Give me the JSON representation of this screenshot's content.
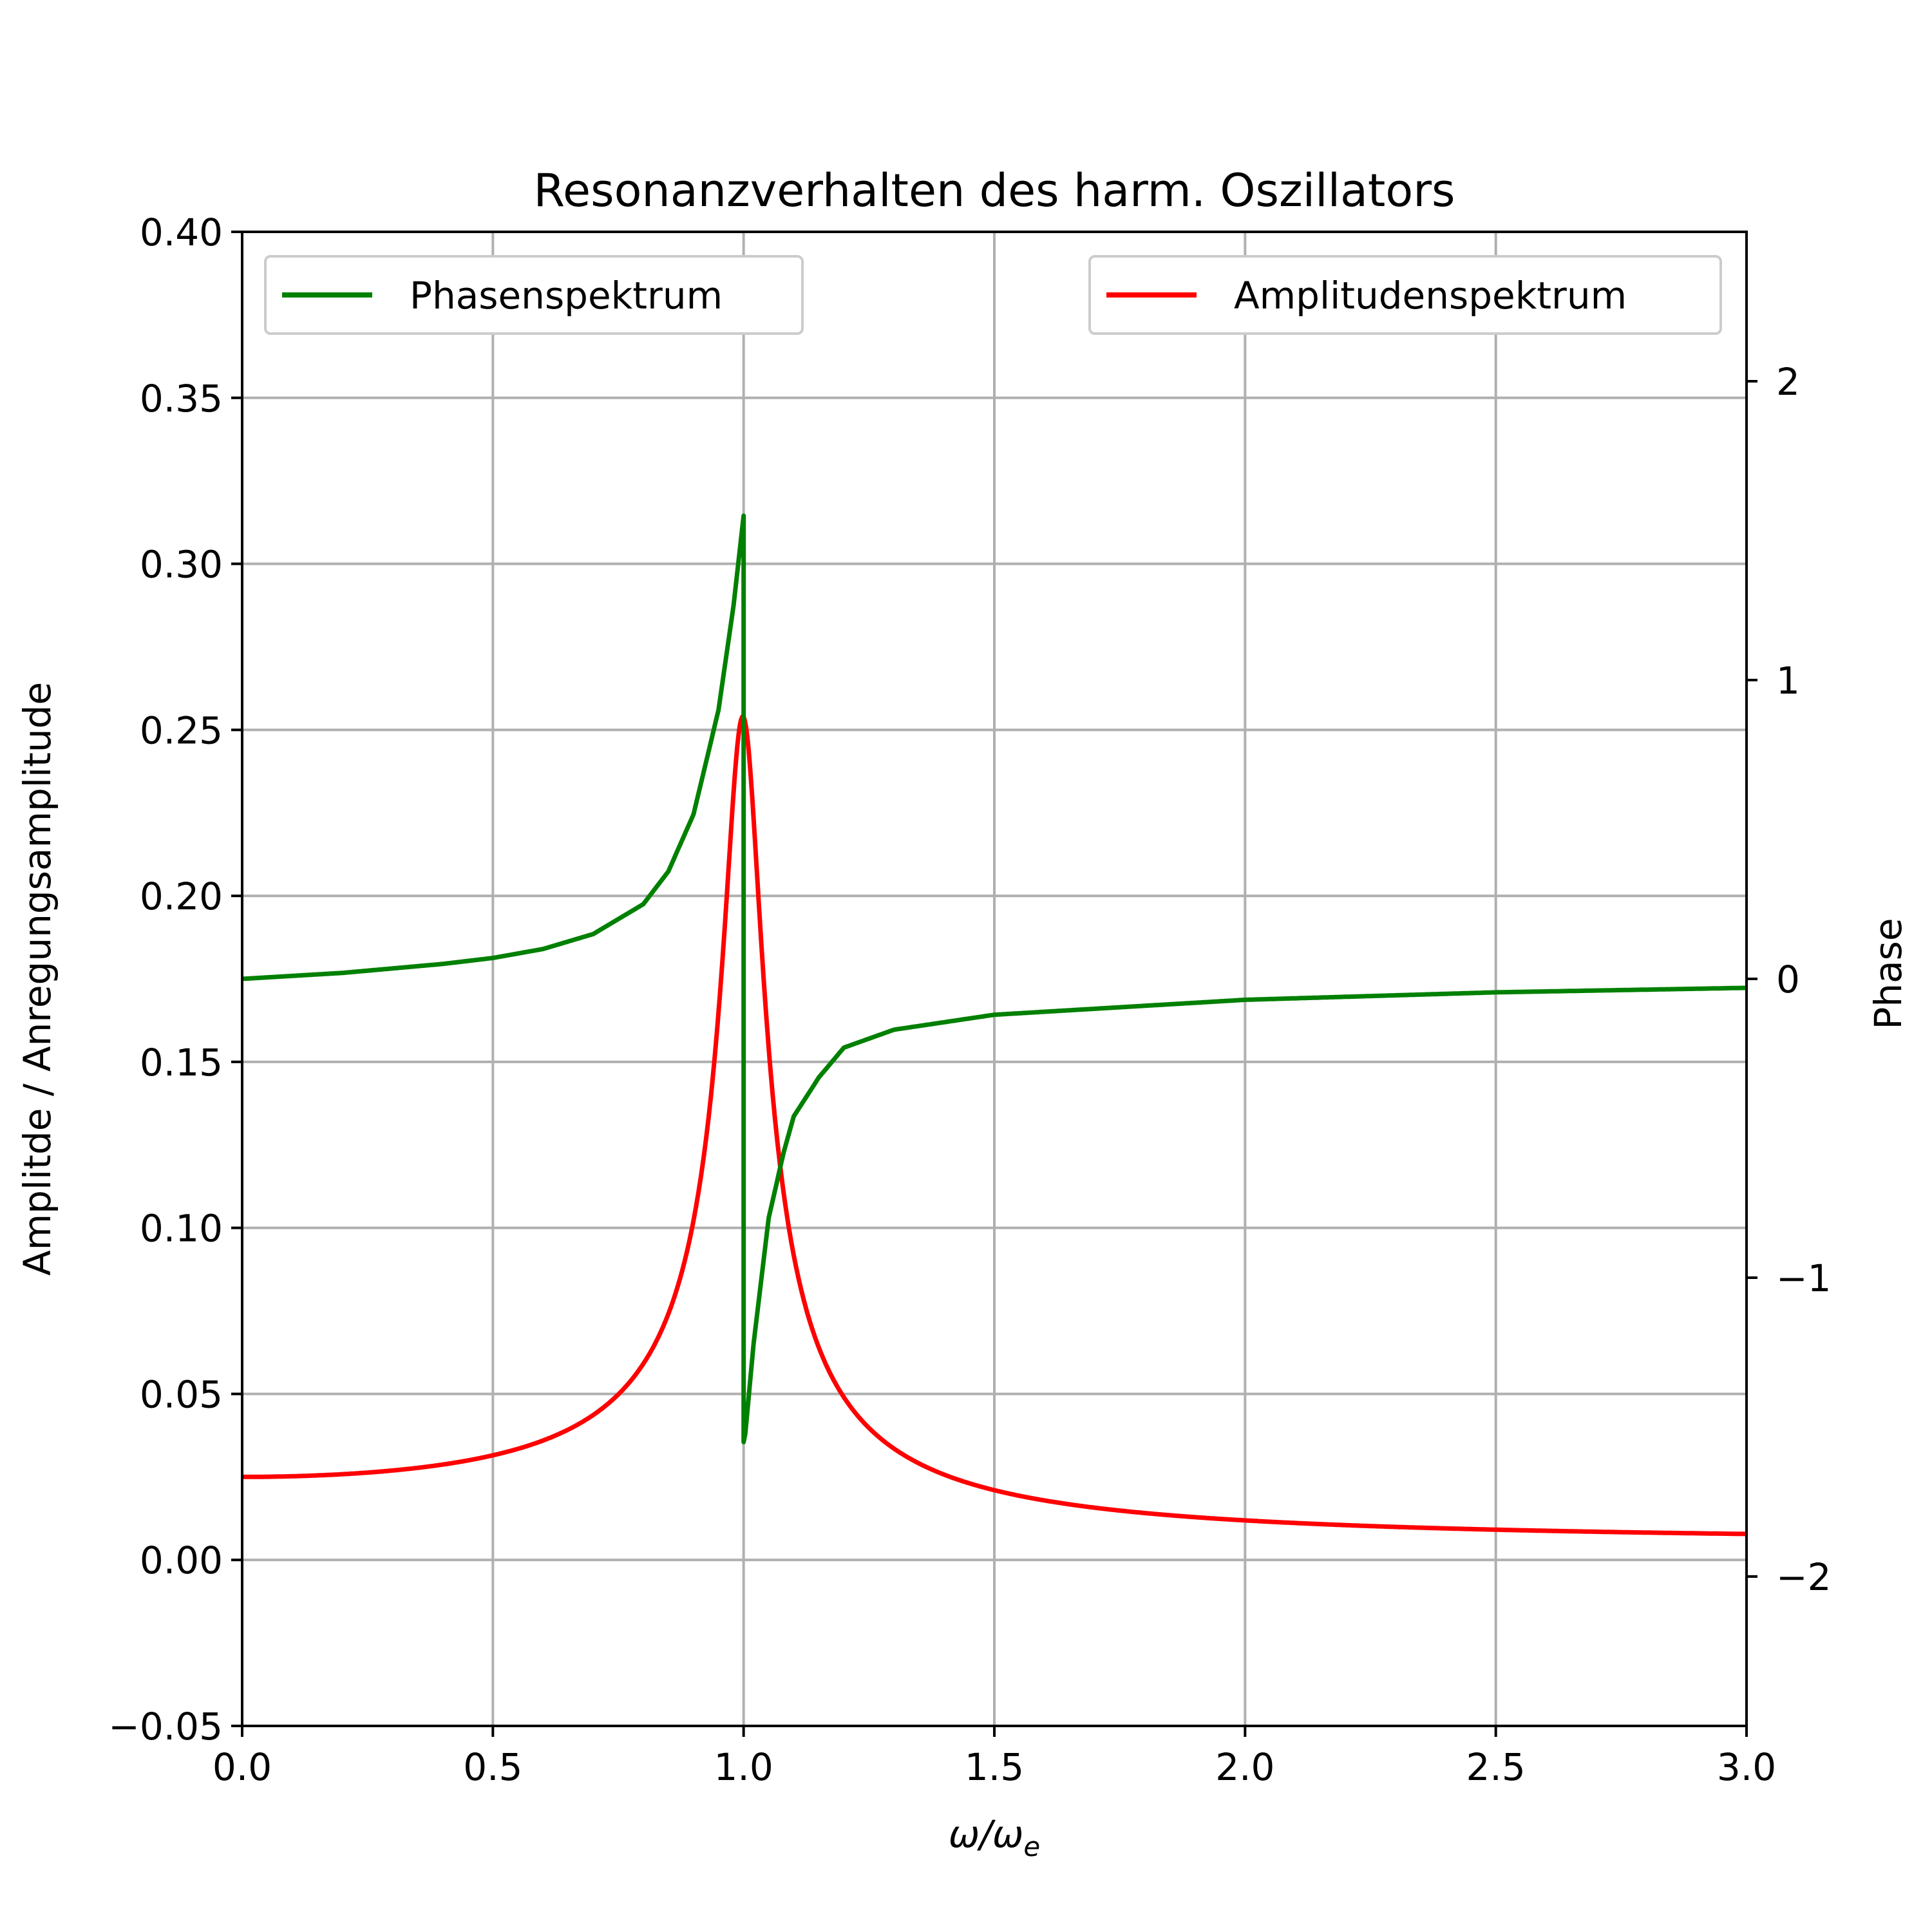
{
  "chart_data": {
    "type": "line",
    "title": "Resonanzverhalten des harm. Oszillators",
    "xlabel": "ω/ω",
    "xlabel_sub": "e",
    "ylabel": "Amplitde / Anregungsamplitude",
    "y2label": "Phase",
    "xlim": [
      0.0,
      3.0
    ],
    "ylim": [
      -0.05,
      0.4
    ],
    "y2lim": [
      -2.5,
      2.5
    ],
    "grid": true,
    "xticks": [
      "0.0",
      "0.5",
      "1.0",
      "1.5",
      "2.0",
      "2.5",
      "3.0"
    ],
    "yticks": [
      "−0.05",
      "0.00",
      "0.05",
      "0.10",
      "0.15",
      "0.20",
      "0.25",
      "0.30",
      "0.35",
      "0.40"
    ],
    "y2ticks": [
      "−2",
      "−1",
      "0",
      "1",
      "2"
    ],
    "series": [
      {
        "name": "Amplitudenspektrum",
        "axis": "left",
        "color": "#ff0000",
        "legend_position": "upper right",
        "x": [
          0.0,
          0.2,
          0.4,
          0.5,
          0.6,
          0.7,
          0.8,
          0.85,
          0.9,
          0.93,
          0.95,
          0.97,
          0.99,
          1.0,
          1.01,
          1.03,
          1.05,
          1.07,
          1.1,
          1.15,
          1.2,
          1.3,
          1.4,
          1.5,
          1.75,
          2.0,
          2.5,
          3.0
        ],
        "y": [
          0.025,
          0.026,
          0.03,
          0.033,
          0.039,
          0.05,
          0.074,
          0.099,
          0.146,
          0.19,
          0.222,
          0.246,
          0.253,
          0.254,
          0.253,
          0.236,
          0.2,
          0.158,
          0.108,
          0.067,
          0.047,
          0.03,
          0.023,
          0.02,
          0.013,
          0.008,
          0.005,
          0.003
        ]
      },
      {
        "name": "Phasenspektrum",
        "axis": "right",
        "color": "#008000",
        "legend_position": "upper left",
        "x": [
          0.0,
          0.2,
          0.4,
          0.5,
          0.6,
          0.7,
          0.8,
          0.85,
          0.9,
          0.95,
          0.98,
          1.0,
          1.0001,
          1.003,
          1.02,
          1.05,
          1.08,
          1.1,
          1.15,
          1.2,
          1.3,
          1.5,
          2.0,
          2.5,
          3.0
        ],
        "y": [
          0.0,
          0.02,
          0.05,
          0.07,
          0.1,
          0.15,
          0.25,
          0.36,
          0.55,
          0.9,
          1.25,
          1.55,
          -1.55,
          -1.53,
          -1.22,
          -0.8,
          -0.58,
          -0.46,
          -0.33,
          -0.23,
          -0.17,
          -0.12,
          -0.07,
          -0.045,
          -0.03
        ]
      }
    ]
  }
}
